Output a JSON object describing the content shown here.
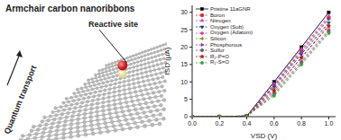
{
  "illustration": {
    "title": "Armchair carbon nanoribbons",
    "reactive_label": "Reactive site",
    "transport_label": "Quantum transport"
  },
  "chart_data": {
    "type": "line",
    "x_label": "VSD (V)",
    "y_label": "ISD (μA)",
    "x": [
      0,
      0.2,
      0.4,
      0.6,
      0.8,
      1.0
    ],
    "xlim": [
      0,
      1.05
    ],
    "xticks": [
      {
        "value": 0,
        "label": "0.0"
      },
      0.2,
      0.4,
      0.6,
      0.8,
      {
        "value": 1,
        "label": "1.0"
      }
    ],
    "ylim": [
      0,
      32
    ],
    "yticks": [
      0,
      5,
      10,
      15,
      20,
      25,
      30
    ],
    "grid": false,
    "legend": "upper left",
    "series": [
      {
        "name": "Pristine 11aGNR",
        "color": "#000000",
        "marker": "square",
        "line_style": "solid",
        "values": [
          0,
          0,
          0.2,
          10,
          20,
          30
        ]
      },
      {
        "name": "Boron",
        "color": "#e02020",
        "marker": "circle",
        "line_style": "dashed",
        "values": [
          0,
          0,
          0.2,
          9,
          19,
          28.5
        ]
      },
      {
        "name": "Nitrogen",
        "color": "#c040c0",
        "marker": "triangle-up",
        "line_style": "dashed",
        "values": [
          0,
          0,
          0.2,
          9.5,
          19.5,
          29
        ]
      },
      {
        "name": "Oxygen (Sub)",
        "color": "#1a2a8a",
        "marker": "triangle-down",
        "line_style": "dashed",
        "values": [
          0,
          0,
          0.2,
          8.5,
          18,
          27
        ]
      },
      {
        "name": "Oxygen (Adatom)",
        "color": "#e040a0",
        "marker": "diamond",
        "line_style": "dashed",
        "values": [
          0,
          0,
          0.1,
          7,
          16,
          25
        ]
      },
      {
        "name": "Silicon",
        "color": "#8a8a20",
        "marker": "triangle-left",
        "line_style": "dashed",
        "values": [
          0,
          0,
          0.2,
          8,
          17,
          26.5
        ]
      },
      {
        "name": "Phosphorous",
        "color": "#7040c0",
        "marker": "triangle-right",
        "line_style": "dashed",
        "values": [
          0,
          0,
          0.2,
          9,
          18.5,
          28
        ]
      },
      {
        "name": "Sulfur",
        "color": "#606060",
        "marker": "hexagon",
        "line_style": "dashed",
        "values": [
          0,
          0,
          0.1,
          6.5,
          15.5,
          24.5
        ]
      },
      {
        "name": "R₂-P=O",
        "color": "#a02020",
        "marker": "star",
        "line_style": "dashed",
        "values": [
          0,
          0,
          0.1,
          7.5,
          17,
          26
        ]
      },
      {
        "name": "R₂-S=O",
        "color": "#40a040",
        "marker": "pentagon",
        "line_style": "dashed",
        "values": [
          0,
          0,
          0.1,
          6,
          15,
          24
        ]
      }
    ]
  }
}
